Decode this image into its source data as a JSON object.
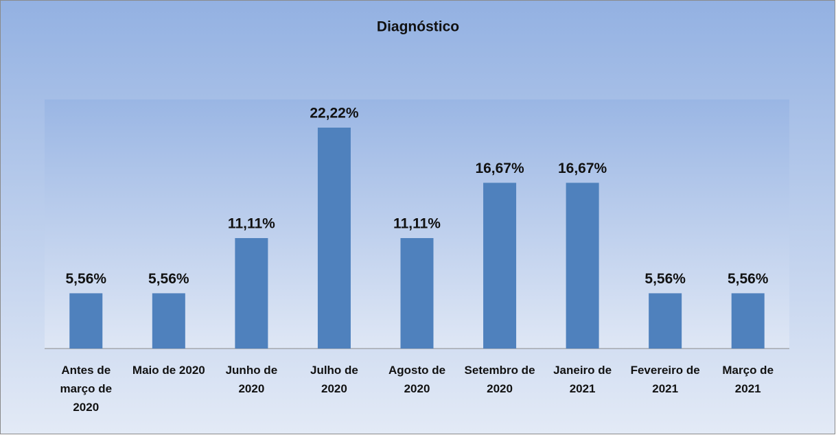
{
  "chart_data": {
    "type": "bar",
    "title": "Diagnóstico",
    "categories": [
      "Antes de março de 2020",
      "Maio de 2020",
      "Junho de 2020",
      "Julho de 2020",
      "Agosto de 2020",
      "Setembro de 2020",
      "Janeiro de 2021",
      "Fevereiro de 2021",
      "Março de 2021"
    ],
    "values": [
      5.56,
      5.56,
      11.11,
      22.22,
      11.11,
      16.67,
      16.67,
      5.56,
      5.56
    ],
    "value_labels": [
      "5,56%",
      "5,56%",
      "11,11%",
      "22,22%",
      "11,11%",
      "16,67%",
      "16,67%",
      "5,56%",
      "5,56%"
    ],
    "color": "#4f81bd"
  }
}
